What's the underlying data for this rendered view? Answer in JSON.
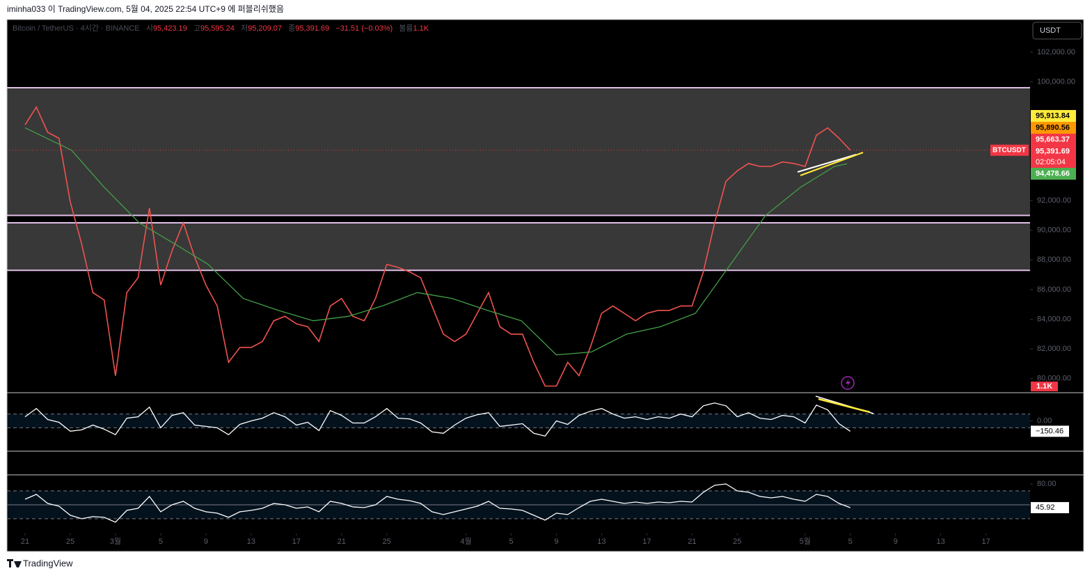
{
  "header": {
    "publisher": "iminha033 이 TradingView.com, 5월 04, 2025 22:54 UTC+9 에 퍼블리쉬했음"
  },
  "legend": {
    "symbol": "Bitcoin / TetherUS · 4시간 · BINANCE",
    "ohlc": [
      {
        "key": "시",
        "value": "95,423.19"
      },
      {
        "key": "고",
        "value": "95,595.24"
      },
      {
        "key": "저",
        "value": "95,209.07"
      },
      {
        "key": "종",
        "value": "95,391.69"
      }
    ],
    "change": "−31.51 (−0.03%)",
    "volume_key": "볼륨",
    "volume": "1.1K"
  },
  "currency_button": "USDT",
  "chart_data": [
    {
      "type": "line",
      "xlim": [
        -1.6,
        88.9
      ],
      "xticks": [
        {
          "value": 0,
          "label": "21"
        },
        {
          "value": 4,
          "label": "25"
        },
        {
          "value": 8,
          "label": "3월"
        },
        {
          "value": 12,
          "label": "5"
        },
        {
          "value": 16,
          "label": "9"
        },
        {
          "value": 20,
          "label": "13"
        },
        {
          "value": 24,
          "label": "17"
        },
        {
          "value": 28,
          "label": "21"
        },
        {
          "value": 32,
          "label": "25"
        },
        {
          "value": 39,
          "label": "4월"
        },
        {
          "value": 43,
          "label": "5"
        },
        {
          "value": 47,
          "label": "9"
        },
        {
          "value": 51,
          "label": "13"
        },
        {
          "value": 55,
          "label": "17"
        },
        {
          "value": 59,
          "label": "21"
        },
        {
          "value": 63,
          "label": "25"
        },
        {
          "value": 69,
          "label": "5월"
        },
        {
          "value": 73,
          "label": "5"
        },
        {
          "value": 77,
          "label": "9"
        },
        {
          "value": 81,
          "label": "13"
        },
        {
          "value": 85,
          "label": "17"
        }
      ],
      "ylim": [
        79100,
        104200
      ],
      "yticks": [
        {
          "value": 102000,
          "label": "102,000.00"
        },
        {
          "value": 100000,
          "label": "100,000.00"
        },
        {
          "value": 92000,
          "label": "92,000.00"
        },
        {
          "value": 90000,
          "label": "90,000.00"
        },
        {
          "value": 88000,
          "label": "88,000.00"
        },
        {
          "value": 86000,
          "label": "86,000.00"
        },
        {
          "value": 84000,
          "label": "84,000.00"
        },
        {
          "value": 82000,
          "label": "82,000.00"
        },
        {
          "value": 80000,
          "label": "80,000.00"
        }
      ],
      "zones": [
        [
          91000,
          99600
        ],
        [
          87300,
          90500
        ]
      ],
      "zone_color": "#e1bee7",
      "series": [
        {
          "color": "#ef5350",
          "x": [
            0,
            1,
            2,
            3,
            4,
            5,
            6,
            7,
            8,
            9,
            10,
            11,
            12,
            13,
            14,
            15,
            16,
            17,
            18,
            19,
            20,
            21,
            22,
            23,
            24,
            25,
            26,
            27,
            28,
            29,
            30,
            31,
            32,
            33,
            34,
            35,
            36,
            37,
            38,
            39,
            40,
            41,
            42,
            43,
            44,
            45,
            46,
            47,
            48,
            49,
            50,
            51,
            52,
            53,
            54,
            55,
            56,
            57,
            58,
            59,
            60,
            61,
            62,
            63,
            64,
            65,
            66,
            67,
            68,
            69,
            70,
            71,
            72,
            73
          ],
          "values": [
            97100,
            98300,
            96600,
            96200,
            91900,
            89100,
            85800,
            85300,
            80200,
            85800,
            86800,
            91500,
            86300,
            88600,
            90500,
            88200,
            86300,
            84900,
            81100,
            82100,
            82100,
            82500,
            83900,
            84200,
            83700,
            83500,
            82500,
            84900,
            85400,
            84200,
            83900,
            85400,
            87700,
            87500,
            87200,
            86800,
            84900,
            83000,
            82500,
            83000,
            84400,
            85800,
            83500,
            83000,
            83000,
            81100,
            79500,
            79500,
            81100,
            80200,
            82100,
            84400,
            84900,
            84400,
            83900,
            84400,
            84600,
            84600,
            84900,
            84900,
            87200,
            90500,
            93300,
            94000,
            94500,
            94300,
            94300,
            94600,
            94500,
            94300,
            96400,
            96900,
            96200,
            95391.69
          ]
        },
        {
          "color": "#43a047",
          "x": [
            0,
            4.1,
            7,
            10.1,
            13.2,
            16.2,
            19.3,
            22.4,
            25.5,
            28.6,
            31.6,
            34.7,
            37.8,
            40.9,
            43.9,
            47,
            50.1,
            53.2,
            56.2,
            59.3,
            62.4,
            65.5,
            68.6,
            71.6,
            72.7
          ],
          "values": [
            96900,
            95400,
            92900,
            90500,
            89100,
            87700,
            85400,
            84600,
            83900,
            84200,
            84900,
            85800,
            85400,
            84600,
            83900,
            81600,
            81800,
            83000,
            83500,
            84400,
            87700,
            91000,
            92900,
            94300,
            94478.66
          ]
        }
      ],
      "last_price_tag": {
        "symbol": "BTCUSDT",
        "value": 95391.69,
        "label": "95,391.69",
        "countdown": "02:05:04",
        "color": "#f23645"
      },
      "price_tags": [
        {
          "value": 95913.84,
          "label": "95,913.84",
          "color": "#ffeb3b"
        },
        {
          "value": 95890.56,
          "label": "95,890.56",
          "color": "#ff9800"
        },
        {
          "value": 95663.37,
          "label": "95,663.37",
          "color": "#f23645"
        },
        {
          "value": 94478.66,
          "label": "94,478.66",
          "color": "#4caf50"
        }
      ],
      "volume_tag": "1.1K"
    },
    {
      "type": "line",
      "ylim": [
        -430,
        390
      ],
      "yticks": [
        {
          "value": 0,
          "label": "0.00"
        }
      ],
      "bands": [
        -100,
        100
      ],
      "series": [
        {
          "color": "#ffffff",
          "values": [
            60,
            180,
            20,
            -20,
            -150,
            -130,
            -60,
            -120,
            -200,
            40,
            60,
            200,
            -100,
            80,
            120,
            -60,
            -80,
            -100,
            -200,
            -50,
            0,
            40,
            120,
            60,
            -60,
            -20,
            -140,
            150,
            80,
            -30,
            -30,
            60,
            180,
            40,
            30,
            -30,
            -160,
            -180,
            -60,
            40,
            90,
            120,
            -80,
            -60,
            -40,
            -180,
            -220,
            0,
            -50,
            80,
            140,
            180,
            100,
            40,
            60,
            20,
            60,
            40,
            100,
            60,
            220,
            260,
            220,
            60,
            120,
            40,
            20,
            80,
            60,
            -30,
            230,
            160,
            -40,
            -150.46
          ]
        }
      ],
      "last_tag": {
        "value": -150.46,
        "label": "−150.46"
      }
    },
    {
      "type": "line",
      "ylim": [
        10,
        92
      ],
      "yticks": [
        {
          "value": 80,
          "label": "80.00"
        }
      ],
      "bands": [
        30,
        70
      ],
      "midline": 50,
      "series": [
        {
          "color": "#ffffff",
          "values": [
            58,
            65,
            52,
            48,
            35,
            30,
            33,
            32,
            25,
            42,
            45,
            62,
            40,
            50,
            55,
            45,
            40,
            38,
            32,
            40,
            42,
            45,
            52,
            50,
            45,
            47,
            40,
            55,
            52,
            47,
            46,
            50,
            62,
            58,
            56,
            52,
            40,
            36,
            40,
            44,
            48,
            55,
            45,
            44,
            42,
            35,
            28,
            38,
            36,
            46,
            55,
            58,
            55,
            52,
            54,
            52,
            54,
            53,
            55,
            54,
            68,
            78,
            80,
            70,
            68,
            62,
            60,
            62,
            58,
            55,
            65,
            62,
            52,
            45.92
          ]
        }
      ],
      "last_tag": {
        "value": 45.92
      }
    }
  ],
  "footer": {
    "brand": "TradingView"
  }
}
